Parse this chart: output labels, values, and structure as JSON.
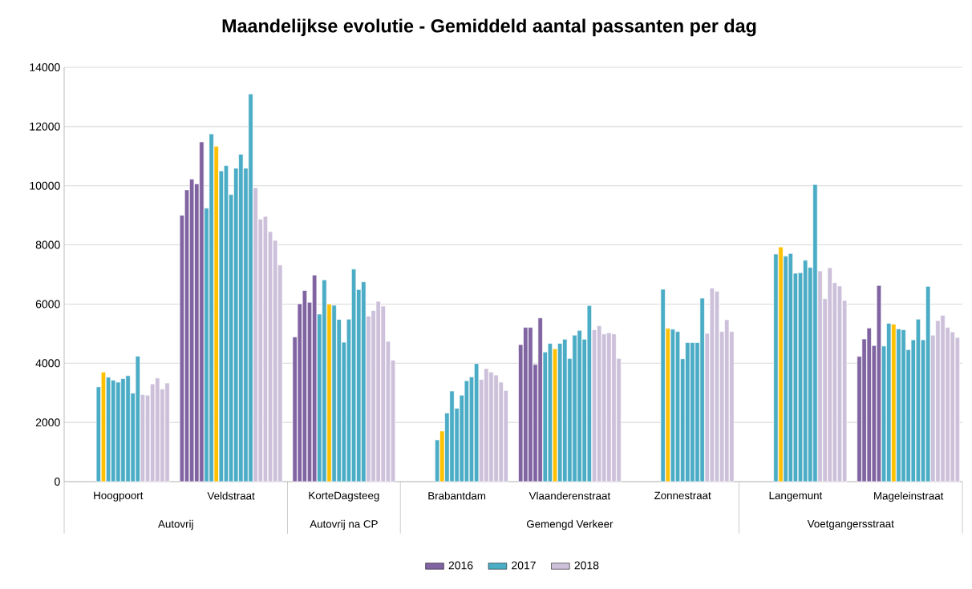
{
  "chart_data": {
    "type": "bar",
    "title": "Maandelijkse evolutie - Gemiddeld aantal passanten per dag",
    "categories": [
      null,
      null,
      null,
      null,
      null,
      null,
      null,
      null,
      null,
      null,
      "Hoogpoort",
      null,
      null,
      null,
      null,
      null,
      null,
      null,
      null,
      null,
      null,
      null,
      null,
      null,
      null,
      null,
      null,
      null,
      null,
      null,
      null,
      null,
      null,
      "Veldstraat",
      null,
      null,
      null,
      null,
      null,
      null,
      null,
      null,
      null,
      null,
      null,
      null,
      null,
      null,
      null,
      null,
      null,
      null,
      null,
      null,
      null,
      null,
      "KorteDagsteeg",
      null,
      null,
      null,
      null,
      null,
      null,
      null,
      null,
      null,
      null,
      null,
      null,
      null,
      null,
      null,
      null,
      null,
      null,
      null,
      null,
      null,
      null,
      "Brabantdam",
      null,
      null,
      null,
      null,
      null,
      null,
      null,
      null,
      null,
      null,
      null,
      null,
      null,
      null,
      null,
      null,
      null,
      null,
      null,
      null,
      null,
      null,
      "Vlaanderenstraat",
      null,
      null,
      null,
      null,
      null,
      null,
      null,
      null,
      null,
      null,
      null,
      null,
      null,
      null,
      null,
      null,
      null,
      null,
      null,
      null,
      null,
      null,
      "Zonnestraat",
      null,
      null,
      null,
      null,
      null,
      null,
      null,
      null,
      null,
      null,
      null,
      null,
      null,
      null,
      null,
      null,
      null,
      null,
      null,
      null,
      null,
      null,
      "Langemunt",
      null,
      null,
      null,
      null,
      null,
      null,
      null,
      null,
      null,
      null,
      null,
      null,
      null,
      null,
      null,
      null,
      null,
      null,
      null,
      null,
      null,
      null,
      "Mageleinstraat",
      null,
      null,
      null,
      null,
      null,
      null,
      null,
      null,
      null,
      null
    ],
    "series": [
      {
        "name": "2016",
        "color": "#8064a2",
        "values": [
          null,
          null,
          null,
          null,
          null,
          null,
          null,
          null,
          null,
          null,
          null,
          null,
          null,
          null,
          null,
          null,
          null,
          null,
          null,
          null,
          null,
          null,
          null,
          9000,
          9860,
          10220,
          10060,
          11480,
          null,
          null,
          null,
          null,
          null,
          null,
          null,
          null,
          null,
          null,
          null,
          null,
          null,
          null,
          null,
          null,
          null,
          null,
          4890,
          6010,
          6460,
          6060,
          6980,
          null,
          null,
          null,
          null,
          null,
          null,
          null,
          null,
          null,
          null,
          null,
          null,
          null,
          null,
          null,
          null,
          null,
          null,
          null,
          null,
          null,
          null,
          null,
          null,
          null,
          null,
          null,
          null,
          null,
          null,
          null,
          null,
          null,
          null,
          null,
          null,
          null,
          null,
          null,
          null,
          null,
          4630,
          5210,
          5210,
          3960,
          5530,
          null,
          null,
          null,
          null,
          null,
          null,
          null,
          null,
          null,
          null,
          null,
          null,
          null,
          null,
          null,
          null,
          null,
          null,
          null,
          null,
          null,
          null,
          null,
          null,
          null,
          null,
          null,
          null,
          null,
          null,
          null,
          null,
          null,
          null,
          null,
          null,
          null,
          null,
          null,
          null,
          null,
          null,
          null,
          null,
          null,
          null,
          null,
          null,
          null,
          null,
          null,
          null,
          null,
          null,
          null,
          null,
          null,
          null,
          null,
          null,
          null,
          null,
          null,
          null,
          4230,
          4820,
          5190,
          4600,
          6630,
          null,
          null,
          null,
          null,
          null,
          null,
          null,
          null,
          null,
          null,
          null,
          null,
          null,
          null,
          null,
          null
        ]
      },
      {
        "name": "2017",
        "color": "#4bacc6",
        "values": [
          null,
          null,
          null,
          null,
          null,
          null,
          3200,
          3700,
          3530,
          3430,
          3360,
          3480,
          3580,
          2990,
          4240,
          null,
          null,
          null,
          null,
          null,
          null,
          null,
          null,
          null,
          null,
          null,
          null,
          null,
          9240,
          11750,
          11330,
          10500,
          10680,
          9700,
          10590,
          11060,
          10590,
          13100,
          null,
          null,
          null,
          null,
          null,
          null,
          null,
          null,
          null,
          null,
          null,
          null,
          null,
          5660,
          6820,
          6000,
          5960,
          5480,
          4710,
          5490,
          7180,
          6490,
          6750,
          null,
          null,
          null,
          null,
          null,
          null,
          null,
          null,
          null,
          null,
          null,
          null,
          null,
          null,
          1410,
          1710,
          2320,
          3060,
          2480,
          2920,
          3410,
          3540,
          3990,
          null,
          null,
          null,
          null,
          null,
          null,
          null,
          null,
          null,
          null,
          null,
          null,
          null,
          4380,
          4670,
          4490,
          4670,
          4810,
          4160,
          4950,
          5110,
          4810,
          5950,
          null,
          null,
          null,
          null,
          null,
          null,
          null,
          null,
          null,
          null,
          null,
          null,
          null,
          null,
          6500,
          5180,
          5150,
          5070,
          4150,
          4700,
          4700,
          4700,
          6200,
          null,
          null,
          null,
          null,
          null,
          null,
          null,
          null,
          null,
          null,
          null,
          null,
          null,
          null,
          7690,
          7930,
          7620,
          7710,
          7040,
          7060,
          7480,
          7240,
          10040,
          null,
          null,
          null,
          null,
          null,
          null,
          null,
          null,
          null,
          null,
          null,
          null,
          null,
          4580,
          5350,
          5320,
          5160,
          5130,
          4460,
          4790,
          5490,
          4790,
          6600,
          null,
          null,
          null,
          null,
          null,
          null
        ],
        "colors": [
          null,
          null,
          null,
          null,
          null,
          null,
          "#4bacc6",
          "#ffc000",
          "#4bacc6",
          "#4bacc6",
          "#4bacc6",
          "#4bacc6",
          "#4bacc6",
          "#4bacc6",
          "#4bacc6",
          null,
          null,
          null,
          null,
          null,
          null,
          null,
          null,
          null,
          null,
          null,
          null,
          null,
          "#4bacc6",
          "#4bacc6",
          "#ffc000",
          "#4bacc6",
          "#4bacc6",
          "#4bacc6",
          "#4bacc6",
          "#4bacc6",
          "#4bacc6",
          "#4bacc6",
          null,
          null,
          null,
          null,
          null,
          null,
          null,
          null,
          null,
          null,
          null,
          null,
          null,
          "#4bacc6",
          "#4bacc6",
          "#ffc000",
          "#4bacc6",
          "#4bacc6",
          "#4bacc6",
          "#4bacc6",
          "#4bacc6",
          "#4bacc6",
          "#4bacc6",
          null,
          null,
          null,
          null,
          null,
          null,
          null,
          null,
          null,
          null,
          null,
          null,
          null,
          null,
          "#4bacc6",
          "#ffc000",
          "#4bacc6",
          "#4bacc6",
          "#4bacc6",
          "#4bacc6",
          "#4bacc6",
          "#4bacc6",
          "#4bacc6",
          null,
          null,
          null,
          null,
          null,
          null,
          null,
          null,
          null,
          null,
          null,
          null,
          null,
          "#4bacc6",
          "#4bacc6",
          "#ffc000",
          "#4bacc6",
          "#4bacc6",
          "#4bacc6",
          "#4bacc6",
          "#4bacc6",
          "#4bacc6",
          "#4bacc6",
          null,
          null,
          null,
          null,
          null,
          null,
          null,
          null,
          null,
          null,
          null,
          null,
          null,
          null,
          "#4bacc6",
          "#ffc000",
          "#4bacc6",
          "#4bacc6",
          "#4bacc6",
          "#4bacc6",
          "#4bacc6",
          "#4bacc6",
          "#4bacc6",
          null,
          null,
          null,
          null,
          null,
          null,
          null,
          null,
          null,
          null,
          null,
          null,
          null,
          null,
          "#4bacc6",
          "#ffc000",
          "#4bacc6",
          "#4bacc6",
          "#4bacc6",
          "#4bacc6",
          "#4bacc6",
          "#4bacc6",
          "#4bacc6",
          null,
          null,
          null,
          null,
          null,
          null,
          null,
          null,
          null,
          null,
          null,
          null,
          null,
          "#4bacc6",
          "#4bacc6",
          "#ffc000",
          "#4bacc6",
          "#4bacc6",
          "#4bacc6",
          "#4bacc6",
          "#4bacc6",
          "#4bacc6",
          "#4bacc6",
          null,
          null,
          null,
          null,
          null,
          null
        ]
      },
      {
        "name": "2018",
        "color": "#ccc0da",
        "values": [
          null,
          null,
          null,
          null,
          null,
          null,
          null,
          null,
          null,
          null,
          null,
          null,
          null,
          null,
          null,
          2940,
          2920,
          3300,
          3500,
          3130,
          3330,
          null,
          null,
          null,
          null,
          null,
          null,
          null,
          null,
          null,
          null,
          null,
          null,
          null,
          null,
          null,
          null,
          null,
          9930,
          8870,
          8960,
          8450,
          8150,
          7320,
          null,
          null,
          null,
          null,
          null,
          null,
          null,
          null,
          null,
          null,
          null,
          null,
          null,
          null,
          null,
          null,
          null,
          5590,
          5780,
          6090,
          5930,
          4740,
          4100,
          null,
          null,
          null,
          null,
          null,
          null,
          null,
          null,
          null,
          null,
          null,
          null,
          null,
          null,
          null,
          null,
          null,
          3450,
          3820,
          3700,
          3600,
          3360,
          3080,
          null,
          null,
          null,
          null,
          null,
          null,
          null,
          null,
          null,
          null,
          null,
          null,
          null,
          null,
          null,
          null,
          null,
          5130,
          5270,
          4990,
          5030,
          4990,
          4160,
          null,
          null,
          null,
          null,
          null,
          null,
          null,
          null,
          null,
          null,
          null,
          null,
          null,
          null,
          null,
          null,
          null,
          5010,
          6540,
          6430,
          5070,
          5470,
          5070,
          null,
          null,
          null,
          null,
          null,
          null,
          null,
          null,
          null,
          null,
          null,
          null,
          null,
          null,
          null,
          null,
          null,
          7120,
          6180,
          7230,
          6720,
          6610,
          6120,
          null,
          null,
          null,
          null,
          null,
          null,
          null,
          null,
          null,
          null,
          null,
          null,
          null,
          null,
          null,
          null,
          null,
          4950,
          5440,
          5620,
          5210,
          5060,
          4870
        ]
      }
    ],
    "ylim": [
      0,
      14000
    ],
    "yticks": [
      0,
      2000,
      4000,
      6000,
      8000,
      10000,
      12000,
      14000
    ],
    "grid": "y",
    "legend": "bottom",
    "annotations": [
      "Autovrij",
      "Autovrij na CP",
      "Gemengd Verkeer",
      "Voetgangersstraat"
    ]
  }
}
